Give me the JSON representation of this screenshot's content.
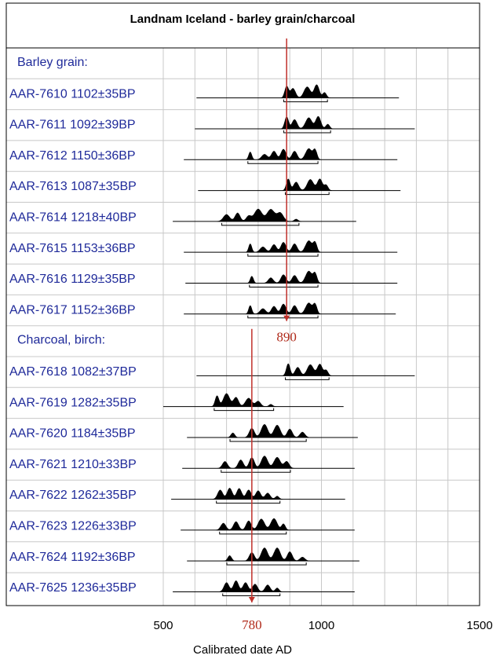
{
  "chart_data": {
    "type": "area",
    "title": "Landnam Iceland - barley grain/charcoal",
    "xlabel": "Calibrated date AD",
    "xlim": [
      500,
      1500
    ],
    "xticks": [
      500,
      1000,
      1500
    ],
    "grid_x": [
      500,
      600,
      700,
      800,
      900,
      1000,
      1100,
      1200,
      1300,
      1400,
      1500
    ],
    "groups": [
      {
        "name": "Barley grain:",
        "samples": [
          {
            "label": "AAR-7610  1102±35BP",
            "range": [
              605,
              1245
            ],
            "peaks": [
              [
                890,
                6,
                0.75
              ],
              [
                910,
                8,
                0.62
              ],
              [
                955,
                10,
                0.72
              ],
              [
                985,
                8,
                0.85
              ],
              [
                1010,
                6,
                0.35
              ]
            ]
          },
          {
            "label": "AAR-7611  1092±39BP",
            "range": [
              600,
              1295
            ],
            "peaks": [
              [
                890,
                6,
                0.78
              ],
              [
                915,
                8,
                0.6
              ],
              [
                960,
                10,
                0.72
              ],
              [
                990,
                8,
                0.8
              ],
              [
                1020,
                6,
                0.3
              ]
            ]
          },
          {
            "label": "AAR-7612  1150±36BP",
            "range": [
              565,
              1240
            ],
            "peaks": [
              [
                775,
                5,
                0.5
              ],
              [
                820,
                9,
                0.35
              ],
              [
                850,
                8,
                0.55
              ],
              [
                880,
                8,
                0.68
              ],
              [
                915,
                8,
                0.55
              ],
              [
                960,
                10,
                0.72
              ],
              [
                980,
                6,
                0.6
              ]
            ]
          },
          {
            "label": "AAR-7613  1087±35BP",
            "range": [
              610,
              1250
            ],
            "peaks": [
              [
                895,
                6,
                0.75
              ],
              [
                920,
                8,
                0.55
              ],
              [
                965,
                10,
                0.72
              ],
              [
                995,
                8,
                0.75
              ],
              [
                1015,
                6,
                0.35
              ]
            ]
          },
          {
            "label": "AAR-7614  1218±40BP",
            "range": [
              530,
              1110
            ],
            "peaks": [
              [
                700,
                10,
                0.45
              ],
              [
                735,
                8,
                0.55
              ],
              [
                770,
                8,
                0.35
              ],
              [
                800,
                12,
                0.8
              ],
              [
                840,
                12,
                0.78
              ],
              [
                870,
                10,
                0.55
              ],
              [
                920,
                6,
                0.15
              ]
            ]
          },
          {
            "label": "AAR-7615  1153±36BP",
            "range": [
              565,
              1240
            ],
            "peaks": [
              [
                775,
                5,
                0.55
              ],
              [
                815,
                9,
                0.35
              ],
              [
                850,
                8,
                0.5
              ],
              [
                880,
                8,
                0.65
              ],
              [
                915,
                8,
                0.55
              ],
              [
                960,
                10,
                0.75
              ],
              [
                980,
                6,
                0.6
              ]
            ]
          },
          {
            "label": "AAR-7616  1129±35BP",
            "range": [
              570,
              1240
            ],
            "peaks": [
              [
                780,
                5,
                0.45
              ],
              [
                840,
                8,
                0.35
              ],
              [
                880,
                8,
                0.55
              ],
              [
                915,
                8,
                0.5
              ],
              [
                960,
                10,
                0.78
              ],
              [
                980,
                6,
                0.6
              ]
            ]
          },
          {
            "label": "AAR-7617  1152±36BP",
            "range": [
              565,
              1235
            ],
            "peaks": [
              [
                775,
                5,
                0.55
              ],
              [
                815,
                9,
                0.35
              ],
              [
                850,
                8,
                0.5
              ],
              [
                880,
                8,
                0.65
              ],
              [
                915,
                8,
                0.55
              ],
              [
                960,
                10,
                0.72
              ],
              [
                980,
                6,
                0.6
              ]
            ]
          }
        ]
      },
      {
        "name": "Charcoal, birch:",
        "samples": [
          {
            "label": "AAR-7618  1082±37BP",
            "range": [
              605,
              1295
            ],
            "peaks": [
              [
                895,
                6,
                0.78
              ],
              [
                925,
                8,
                0.55
              ],
              [
                965,
                10,
                0.72
              ],
              [
                995,
                8,
                0.75
              ],
              [
                1015,
                6,
                0.35
              ]
            ]
          },
          {
            "label": "AAR-7619  1282±35BP",
            "range": [
              500,
              1070
            ],
            "peaks": [
              [
                670,
                6,
                0.7
              ],
              [
                700,
                10,
                0.85
              ],
              [
                730,
                8,
                0.6
              ],
              [
                770,
                10,
                0.55
              ],
              [
                800,
                8,
                0.35
              ],
              [
                840,
                6,
                0.15
              ]
            ]
          },
          {
            "label": "AAR-7620  1184±35BP",
            "range": [
              575,
              1115
            ],
            "peaks": [
              [
                720,
                6,
                0.3
              ],
              [
                780,
                8,
                0.6
              ],
              [
                820,
                10,
                0.85
              ],
              [
                860,
                10,
                0.8
              ],
              [
                900,
                8,
                0.55
              ],
              [
                940,
                8,
                0.35
              ]
            ]
          },
          {
            "label": "AAR-7621  1210±33BP",
            "range": [
              560,
              1105
            ],
            "peaks": [
              [
                695,
                8,
                0.45
              ],
              [
                745,
                8,
                0.55
              ],
              [
                780,
                8,
                0.7
              ],
              [
                820,
                10,
                0.8
              ],
              [
                860,
                10,
                0.72
              ],
              [
                890,
                8,
                0.45
              ]
            ]
          },
          {
            "label": "AAR-7622  1262±35BP",
            "range": [
              525,
              1075
            ],
            "peaks": [
              [
                680,
                8,
                0.6
              ],
              [
                710,
                8,
                0.72
              ],
              [
                740,
                8,
                0.7
              ],
              [
                770,
                8,
                0.6
              ],
              [
                800,
                8,
                0.55
              ],
              [
                830,
                8,
                0.4
              ],
              [
                860,
                6,
                0.2
              ]
            ]
          },
          {
            "label": "AAR-7623  1226±33BP",
            "range": [
              555,
              1105
            ],
            "peaks": [
              [
                690,
                8,
                0.45
              ],
              [
                730,
                8,
                0.55
              ],
              [
                770,
                8,
                0.6
              ],
              [
                810,
                10,
                0.72
              ],
              [
                850,
                10,
                0.75
              ],
              [
                880,
                6,
                0.4
              ]
            ]
          },
          {
            "label": "AAR-7624  1192±36BP",
            "range": [
              575,
              1120
            ],
            "peaks": [
              [
                710,
                6,
                0.35
              ],
              [
                780,
                8,
                0.55
              ],
              [
                820,
                10,
                0.85
              ],
              [
                860,
                10,
                0.85
              ],
              [
                900,
                8,
                0.6
              ],
              [
                940,
                8,
                0.25
              ]
            ]
          },
          {
            "label": "AAR-7625  1236±35BP",
            "range": [
              530,
              1105
            ],
            "peaks": [
              [
                700,
                8,
                0.6
              ],
              [
                730,
                8,
                0.72
              ],
              [
                760,
                8,
                0.6
              ],
              [
                790,
                8,
                0.5
              ],
              [
                830,
                8,
                0.45
              ],
              [
                860,
                6,
                0.25
              ]
            ]
          }
        ]
      }
    ],
    "markers": [
      {
        "value": 890,
        "label": "890",
        "group": "Barley grain:",
        "color": "#c0302a"
      },
      {
        "value": 780,
        "label": "780",
        "group": "Charcoal, birch:",
        "color": "#c0302a"
      }
    ]
  }
}
